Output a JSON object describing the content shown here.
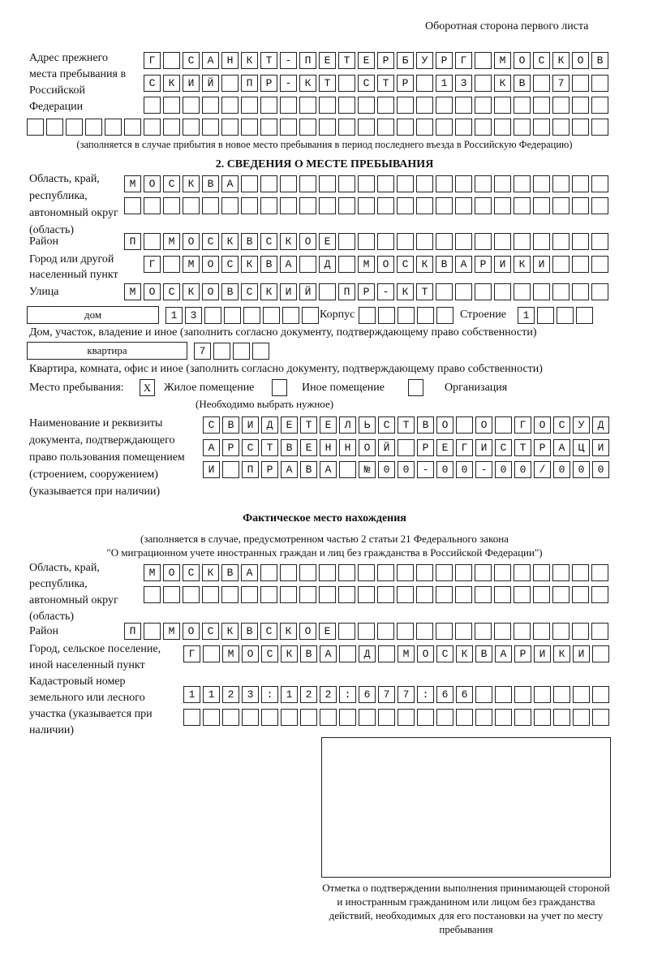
{
  "header": "Оборотная сторона первого листа",
  "prev": {
    "label": "Адрес прежнего места пребывания в Российской Федерации",
    "rows": [
      "Г САНКТ-ПЕТЕРБУРГ МОСКОВ",
      "СКИЙ ПР-КТ СТР 13 КВ 7  ",
      "                        ",
      "                              "
    ],
    "note": "(заполняется в случае прибытия в новое место пребывания в период последнего въезда в Российскую Федерацию)"
  },
  "section2": {
    "title": "2. СВЕДЕНИЯ О МЕСТЕ ПРЕБЫВАНИЯ",
    "region_label": "Область, край, республика, автономный округ (область)",
    "region_rows": [
      "МОСКВА                   ",
      "                         "
    ],
    "district_label": "Район",
    "district": "П МОСКВСКОЕ              ",
    "city_label": "Город или другой населенный пункт",
    "city": "Г МОСКВА Д МОСКВАРИКИ   ",
    "street_label": "Улица",
    "street": "МОСКОВСКИЙ ПР-КТ         ",
    "house_type": "дом",
    "house": "13      ",
    "korpus_label": "Корпус",
    "korpus": "     ",
    "stroenie_label": "Строение",
    "stroenie": "1   ",
    "house_note": "Дом, участок, владение и иное (заполнить согласно документу, подтверждающему право собственности)",
    "flat_type": "квартира",
    "flat": "7   ",
    "flat_note": "Квартира, комната, офис и иное (заполнить согласно документу, подтверждающему право собственности)",
    "place_label": "Место пребывания:",
    "place_options": [
      {
        "label": "Жилое помещение",
        "mark": "X"
      },
      {
        "label": "Иное помещение",
        "mark": ""
      },
      {
        "label": "Организация",
        "mark": ""
      }
    ],
    "place_note": "(Необходимо выбрать нужное)",
    "doc_label": "Наименование и реквизиты документа, подтверждающего право пользования помещением (строением, сооружением) (указывается при наличии)",
    "doc_rows": [
      "СВИДЕТЕЛЬСТВО О ГОСУД",
      "АРСТВЕННОЙ РЕГИСТРАЦИ",
      "И ПРАВА №00-00-00/000"
    ]
  },
  "actual": {
    "title": "Фактическое место нахождения",
    "note1": "(заполняется в случае, предусмотренном частью 2 статьи 21 Федерального закона",
    "note2": "\"О миграционном учете иностранных граждан и лиц без гражданства в Российской Федерации\")",
    "region_label": "Область, край, республика, автономный округ (область)",
    "region_rows": [
      "МОСКВА                  ",
      "                        "
    ],
    "district_label": "Район",
    "district": "П МОСКВСКОЕ              ",
    "city_label": "Город, сельское поселение, иной населенный пункт",
    "city": "Г МОСКВА Д МОСКВАРИКИ ",
    "cadastre_label": "Кадастровый номер земельного или лесного участка (указывается при наличии)",
    "cadastre_rows": [
      "1123:122:677:66       ",
      "                      "
    ]
  },
  "stamp_caption": "Отметка о подтверждении выполнения принимающей стороной и иностранным гражданином или лицом без гражданства действий, необходимых для его постановки на учет по месту пребывания"
}
